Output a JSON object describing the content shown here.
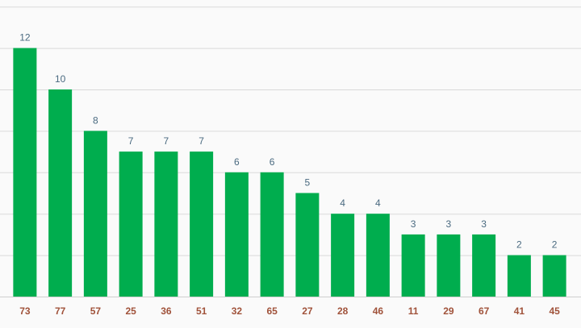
{
  "chart_data": {
    "type": "bar",
    "title": "",
    "xlabel": "",
    "ylabel": "",
    "categories": [
      "73",
      "77",
      "57",
      "25",
      "36",
      "51",
      "32",
      "65",
      "27",
      "28",
      "46",
      "11",
      "29",
      "67",
      "41",
      "45"
    ],
    "values": [
      12,
      10,
      8,
      7,
      7,
      7,
      6,
      6,
      5,
      4,
      4,
      3,
      3,
      3,
      2,
      2
    ],
    "ylim": [
      0,
      14
    ],
    "grid": true,
    "legend": "none",
    "colors": {
      "bar": "#00ad4e",
      "value_label": "#4a6a80",
      "category_label": "#a0523a",
      "grid": "#d9d9d9",
      "background": "#fafafa"
    }
  }
}
